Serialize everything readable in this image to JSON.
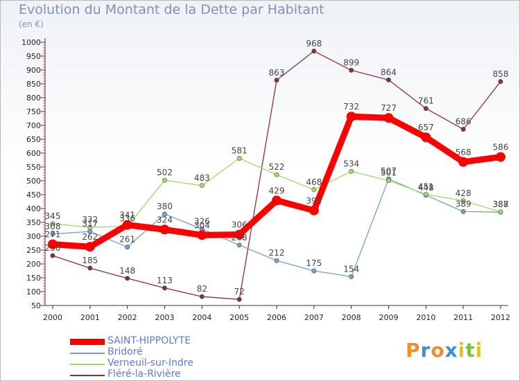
{
  "header": {
    "title": "Evolution du Montant de la Dette par Habitant",
    "subtitle": "(en €)"
  },
  "brand": {
    "text": "Proxiti",
    "letters": [
      "P",
      "r",
      "o",
      "x",
      "i",
      "t",
      "i"
    ],
    "colors": [
      "#f28c28",
      "#3a8fd8",
      "#f28c28",
      "#3a8fd8",
      "#e8c020",
      "#7cc242",
      "#e8c020"
    ]
  },
  "chart_data": {
    "type": "line",
    "x": [
      "2000",
      "2001",
      "2002",
      "2003",
      "2004",
      "2005",
      "2006",
      "2007",
      "2008",
      "2009",
      "2010",
      "2011",
      "2012"
    ],
    "ylim": [
      50,
      1000
    ],
    "yticks": [
      50,
      100,
      150,
      200,
      250,
      300,
      350,
      400,
      450,
      500,
      550,
      600,
      650,
      700,
      750,
      800,
      850,
      900,
      950,
      1000
    ],
    "grid": false,
    "legend_position": "bottom-left",
    "series": [
      {
        "name": "SAINT-HIPPOLYTE",
        "color": "#ff0000",
        "values": [
          271,
          262,
          341,
          324,
          304,
          306,
          429,
          393,
          732,
          727,
          657,
          568,
          586
        ]
      },
      {
        "name": "Bridoré",
        "color": "#6fa0d0",
        "values": [
          308,
          317,
          261,
          380,
          326,
          268,
          212,
          175,
          154,
          507,
          448,
          389,
          387
        ]
      },
      {
        "name": "Verneuil-sur-Indre",
        "color": "#99dd66",
        "values": [
          345,
          332,
          336,
          502,
          483,
          581,
          522,
          468,
          534,
          501,
          451,
          428,
          388
        ]
      },
      {
        "name": "Fléré-la-Rivière",
        "color": "#8b2f2f",
        "values": [
          230,
          185,
          148,
          113,
          82,
          72,
          863,
          968,
          899,
          864,
          761,
          686,
          858
        ]
      }
    ]
  }
}
